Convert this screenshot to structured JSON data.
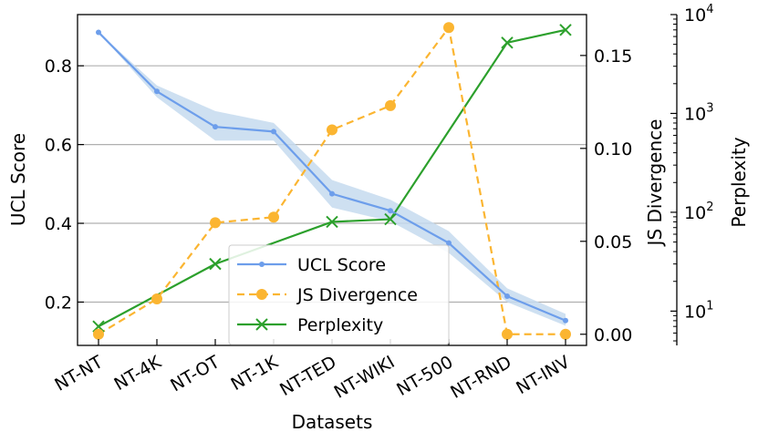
{
  "chart_data": {
    "type": "line",
    "categories": [
      "NT-NT",
      "NT-4K",
      "NT-OT",
      "NT-1K",
      "NT-TED",
      "NT-WIKI",
      "NT-500",
      "NT-RND",
      "NT-INV"
    ],
    "xlabel": "Datasets",
    "axes": {
      "left": {
        "label": "UCL Score",
        "ylim": [
          0.09,
          0.93
        ],
        "ticks": [
          0.2,
          0.4,
          0.6,
          0.8
        ],
        "tick_labels": [
          "0.2",
          "0.4",
          "0.6",
          "0.8"
        ],
        "grid": true
      },
      "right": {
        "label": "JS Divergence",
        "ylim": [
          -0.006,
          0.172
        ],
        "ticks": [
          0.0,
          0.05,
          0.1,
          0.15
        ],
        "tick_labels": [
          "0.00",
          "0.05",
          "0.10",
          "0.15"
        ]
      },
      "far_right": {
        "label": "Perplexity",
        "scale": "log",
        "ylim": [
          4.5,
          10000
        ],
        "ticks": [
          10,
          100,
          1000,
          10000
        ],
        "tick_labels": [
          "10",
          "10",
          "10",
          "10"
        ],
        "tick_exponents": [
          "1",
          "2",
          "3",
          "4"
        ]
      }
    },
    "series": [
      {
        "name": "UCL Score",
        "axis": "left",
        "color": "#6d9eeb",
        "marker": "dot",
        "linestyle": "solid",
        "values": [
          0.885,
          0.735,
          0.645,
          0.633,
          0.475,
          0.432,
          0.35,
          0.215,
          0.153
        ],
        "band_lower": [
          0.885,
          0.72,
          0.61,
          0.61,
          0.44,
          0.405,
          0.325,
          0.2,
          0.14
        ],
        "band_upper": [
          0.885,
          0.75,
          0.685,
          0.655,
          0.51,
          0.46,
          0.38,
          0.235,
          0.17
        ],
        "band_color": "#c6dbef"
      },
      {
        "name": "JS Divergence",
        "axis": "right",
        "color": "#fbb531",
        "marker": "circle",
        "linestyle": "dashed",
        "values": [
          0.0,
          0.019,
          0.06,
          0.063,
          0.11,
          0.123,
          0.165,
          0.0,
          0.0
        ]
      },
      {
        "name": "Perplexity",
        "axis": "far_right",
        "color": "#2ca02c",
        "marker": "x",
        "linestyle": "solid",
        "values": [
          7,
          null,
          30,
          null,
          80,
          85,
          null,
          5200,
          7000
        ]
      }
    ],
    "legend": {
      "position": "lower-center",
      "entries": [
        "UCL Score",
        "JS Divergence",
        "Perplexity"
      ]
    }
  }
}
